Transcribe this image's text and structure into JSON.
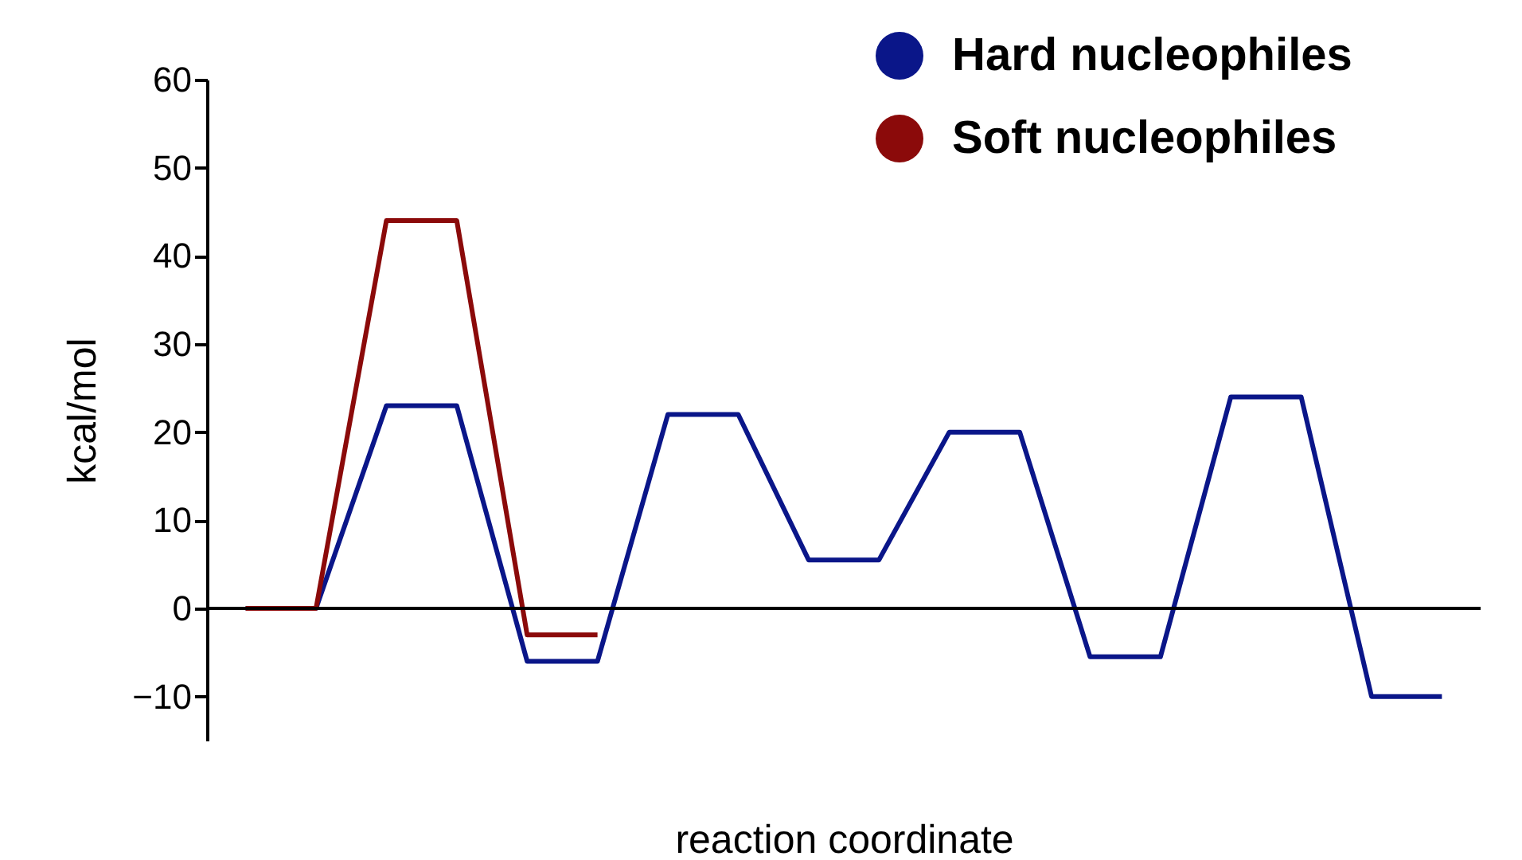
{
  "chart_data": {
    "type": "line",
    "xlabel": "reaction coordinate",
    "ylabel": "kcal/mol",
    "categories": [
      null,
      null,
      null,
      null,
      null,
      null,
      null,
      null,
      null,
      null,
      null,
      null,
      null,
      null,
      null,
      null,
      null,
      null
    ],
    "series": [
      {
        "name": "Hard nucleophiles",
        "color": "#0a1689",
        "values": [
          0,
          0,
          23,
          23,
          -6,
          -6,
          22,
          22,
          5.5,
          5.5,
          20,
          20,
          -5.5,
          -5.5,
          24,
          24,
          -10,
          -10
        ]
      },
      {
        "name": "Soft nucleophiles",
        "color": "#8b0a0a",
        "values": [
          0,
          0,
          44,
          44,
          -3,
          -3,
          null,
          null,
          null,
          null,
          null,
          null,
          null,
          null,
          null,
          null,
          null,
          null
        ]
      }
    ],
    "ylim": [
      -15,
      60
    ],
    "yticks": [
      -10,
      0,
      10,
      20,
      30,
      40,
      50,
      60
    ],
    "ref_lines": [
      {
        "axis": "y",
        "value": 0,
        "color": "#000000"
      }
    ],
    "grid": false,
    "legend": "top right",
    "line_style": "solid",
    "marker": "none"
  }
}
